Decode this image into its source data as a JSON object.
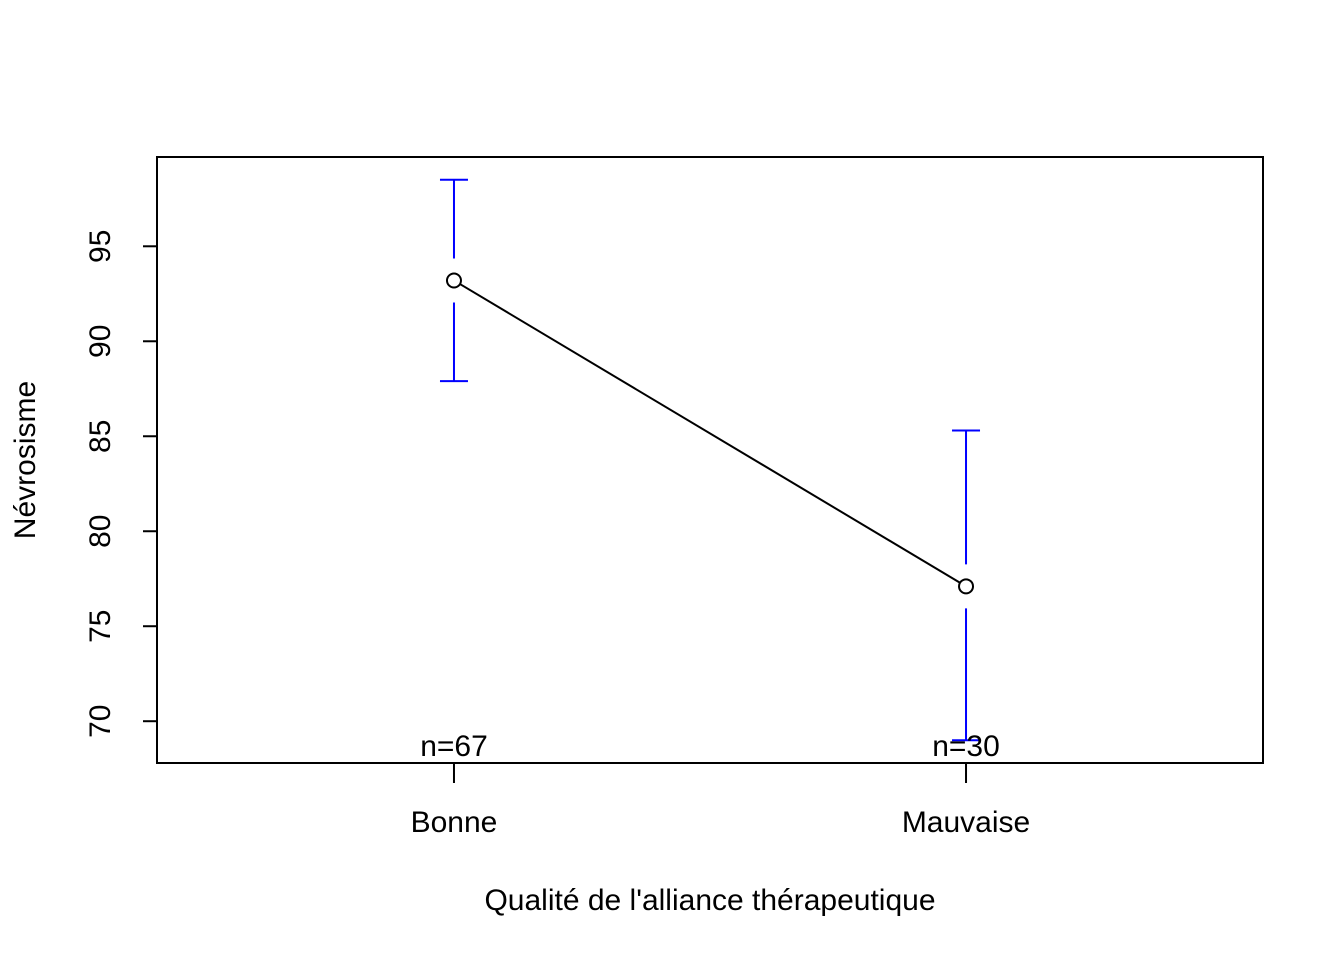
{
  "chart_data": {
    "type": "line",
    "xlabel": "Qualité de l'alliance thérapeutique",
    "ylabel": "Névrosisme",
    "categories": [
      "Bonne",
      "Mauvaise"
    ],
    "series": [
      {
        "values": [
          93.2,
          77.1
        ],
        "error_upper": [
          98.5,
          85.3
        ],
        "error_lower": [
          87.9,
          69.0
        ],
        "counts": [
          "n=67",
          "n=30"
        ]
      }
    ],
    "yticks": [
      70,
      75,
      80,
      85,
      90,
      95
    ],
    "ytick_labels": [
      "70",
      "75",
      "80",
      "85",
      "90",
      "95"
    ],
    "ylim": [
      67.8,
      99.7
    ],
    "xlim": [
      0.42,
      2.58
    ],
    "grid": false,
    "colors": {
      "line": "#000000",
      "error_bars": "#0000ff"
    }
  }
}
